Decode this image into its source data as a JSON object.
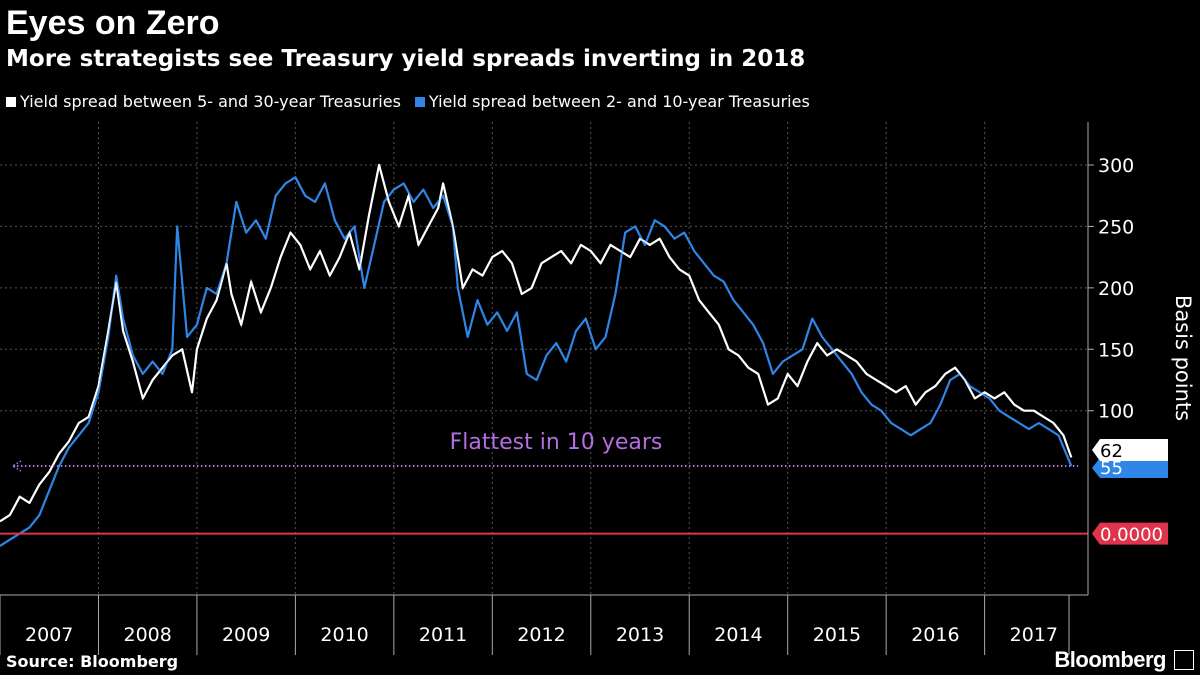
{
  "header": {
    "title": "Eyes on Zero",
    "subtitle": "More strategists see Treasury yield spreads inverting in 2018"
  },
  "footer": {
    "source": "Source: Bloomberg",
    "brand": "Bloomberg"
  },
  "colors": {
    "series_white": "#ffffff",
    "series_blue": "#2f86e6",
    "zero_line": "#e0334c",
    "annotation": "#b36ee0",
    "grid": "#555555"
  },
  "chart_data": {
    "type": "line",
    "ylabel": "Basis points",
    "ylim": [
      -50,
      335
    ],
    "yticks": [
      100,
      150,
      200,
      250,
      300
    ],
    "xlim": [
      2007.0,
      2018.05
    ],
    "xticks": [
      "2007",
      "2008",
      "2009",
      "2010",
      "2011",
      "2012",
      "2013",
      "2014",
      "2015",
      "2016",
      "2017"
    ],
    "grid": true,
    "legend": "top-left",
    "annotation": {
      "text": "Flattest in 10 years",
      "y": 55,
      "x_from": 2007.05,
      "x_to": 2017.95
    },
    "reference_line": {
      "y": 0,
      "label": "0.0000"
    },
    "end_labels": {
      "white": "62",
      "blue": "55"
    },
    "series": [
      {
        "name": "Yield spread between 5- and 30-year Treasuries",
        "color": "#ffffff",
        "points": [
          [
            2007.0,
            10
          ],
          [
            2007.1,
            15
          ],
          [
            2007.2,
            30
          ],
          [
            2007.3,
            25
          ],
          [
            2007.4,
            40
          ],
          [
            2007.5,
            50
          ],
          [
            2007.6,
            65
          ],
          [
            2007.7,
            75
          ],
          [
            2007.8,
            90
          ],
          [
            2007.9,
            95
          ],
          [
            2008.0,
            120
          ],
          [
            2008.1,
            165
          ],
          [
            2008.18,
            205
          ],
          [
            2008.25,
            165
          ],
          [
            2008.35,
            140
          ],
          [
            2008.45,
            110
          ],
          [
            2008.55,
            125
          ],
          [
            2008.65,
            135
          ],
          [
            2008.75,
            145
          ],
          [
            2008.85,
            150
          ],
          [
            2008.95,
            115
          ],
          [
            2009.0,
            150
          ],
          [
            2009.1,
            175
          ],
          [
            2009.2,
            190
          ],
          [
            2009.3,
            220
          ],
          [
            2009.35,
            195
          ],
          [
            2009.45,
            170
          ],
          [
            2009.55,
            205
          ],
          [
            2009.65,
            180
          ],
          [
            2009.75,
            200
          ],
          [
            2009.85,
            225
          ],
          [
            2009.95,
            245
          ],
          [
            2010.05,
            235
          ],
          [
            2010.15,
            215
          ],
          [
            2010.25,
            230
          ],
          [
            2010.35,
            210
          ],
          [
            2010.45,
            225
          ],
          [
            2010.55,
            245
          ],
          [
            2010.65,
            215
          ],
          [
            2010.75,
            260
          ],
          [
            2010.85,
            300
          ],
          [
            2010.95,
            270
          ],
          [
            2011.05,
            250
          ],
          [
            2011.15,
            275
          ],
          [
            2011.25,
            235
          ],
          [
            2011.35,
            250
          ],
          [
            2011.45,
            265
          ],
          [
            2011.5,
            285
          ],
          [
            2011.6,
            250
          ],
          [
            2011.7,
            200
          ],
          [
            2011.8,
            215
          ],
          [
            2011.9,
            210
          ],
          [
            2012.0,
            225
          ],
          [
            2012.1,
            230
          ],
          [
            2012.2,
            220
          ],
          [
            2012.3,
            195
          ],
          [
            2012.4,
            200
          ],
          [
            2012.5,
            220
          ],
          [
            2012.6,
            225
          ],
          [
            2012.7,
            230
          ],
          [
            2012.8,
            220
          ],
          [
            2012.9,
            235
          ],
          [
            2013.0,
            230
          ],
          [
            2013.1,
            220
          ],
          [
            2013.2,
            235
          ],
          [
            2013.3,
            230
          ],
          [
            2013.4,
            225
          ],
          [
            2013.5,
            240
          ],
          [
            2013.6,
            235
          ],
          [
            2013.7,
            240
          ],
          [
            2013.8,
            225
          ],
          [
            2013.9,
            215
          ],
          [
            2014.0,
            210
          ],
          [
            2014.1,
            190
          ],
          [
            2014.2,
            180
          ],
          [
            2014.3,
            170
          ],
          [
            2014.4,
            150
          ],
          [
            2014.5,
            145
          ],
          [
            2014.6,
            135
          ],
          [
            2014.7,
            130
          ],
          [
            2014.8,
            105
          ],
          [
            2014.9,
            110
          ],
          [
            2015.0,
            130
          ],
          [
            2015.1,
            120
          ],
          [
            2015.2,
            140
          ],
          [
            2015.3,
            155
          ],
          [
            2015.4,
            145
          ],
          [
            2015.5,
            150
          ],
          [
            2015.6,
            145
          ],
          [
            2015.7,
            140
          ],
          [
            2015.8,
            130
          ],
          [
            2015.9,
            125
          ],
          [
            2016.0,
            120
          ],
          [
            2016.1,
            115
          ],
          [
            2016.2,
            120
          ],
          [
            2016.3,
            105
          ],
          [
            2016.4,
            115
          ],
          [
            2016.5,
            120
          ],
          [
            2016.6,
            130
          ],
          [
            2016.7,
            135
          ],
          [
            2016.8,
            125
          ],
          [
            2016.9,
            110
          ],
          [
            2017.0,
            115
          ],
          [
            2017.1,
            110
          ],
          [
            2017.2,
            115
          ],
          [
            2017.3,
            105
          ],
          [
            2017.4,
            100
          ],
          [
            2017.5,
            100
          ],
          [
            2017.6,
            95
          ],
          [
            2017.7,
            90
          ],
          [
            2017.8,
            80
          ],
          [
            2017.88,
            62
          ]
        ]
      },
      {
        "name": "Yield spread between 2- and 10-year Treasuries",
        "color": "#2f86e6",
        "points": [
          [
            2007.0,
            -10
          ],
          [
            2007.1,
            -5
          ],
          [
            2007.2,
            0
          ],
          [
            2007.3,
            5
          ],
          [
            2007.4,
            15
          ],
          [
            2007.5,
            35
          ],
          [
            2007.6,
            55
          ],
          [
            2007.7,
            70
          ],
          [
            2007.8,
            80
          ],
          [
            2007.9,
            90
          ],
          [
            2008.0,
            115
          ],
          [
            2008.1,
            160
          ],
          [
            2008.18,
            210
          ],
          [
            2008.25,
            175
          ],
          [
            2008.35,
            145
          ],
          [
            2008.45,
            130
          ],
          [
            2008.55,
            140
          ],
          [
            2008.65,
            130
          ],
          [
            2008.75,
            150
          ],
          [
            2008.8,
            250
          ],
          [
            2008.9,
            160
          ],
          [
            2009.0,
            170
          ],
          [
            2009.1,
            200
          ],
          [
            2009.2,
            195
          ],
          [
            2009.3,
            220
          ],
          [
            2009.4,
            270
          ],
          [
            2009.5,
            245
          ],
          [
            2009.6,
            255
          ],
          [
            2009.7,
            240
          ],
          [
            2009.8,
            275
          ],
          [
            2009.9,
            285
          ],
          [
            2010.0,
            290
          ],
          [
            2010.1,
            275
          ],
          [
            2010.2,
            270
          ],
          [
            2010.3,
            285
          ],
          [
            2010.4,
            255
          ],
          [
            2010.5,
            240
          ],
          [
            2010.6,
            250
          ],
          [
            2010.7,
            200
          ],
          [
            2010.8,
            235
          ],
          [
            2010.9,
            270
          ],
          [
            2011.0,
            280
          ],
          [
            2011.1,
            285
          ],
          [
            2011.2,
            270
          ],
          [
            2011.3,
            280
          ],
          [
            2011.4,
            265
          ],
          [
            2011.5,
            275
          ],
          [
            2011.6,
            250
          ],
          [
            2011.65,
            200
          ],
          [
            2011.75,
            160
          ],
          [
            2011.85,
            190
          ],
          [
            2011.95,
            170
          ],
          [
            2012.05,
            180
          ],
          [
            2012.15,
            165
          ],
          [
            2012.25,
            180
          ],
          [
            2012.35,
            130
          ],
          [
            2012.45,
            125
          ],
          [
            2012.55,
            145
          ],
          [
            2012.65,
            155
          ],
          [
            2012.75,
            140
          ],
          [
            2012.85,
            165
          ],
          [
            2012.95,
            175
          ],
          [
            2013.05,
            150
          ],
          [
            2013.15,
            160
          ],
          [
            2013.25,
            195
          ],
          [
            2013.35,
            245
          ],
          [
            2013.45,
            250
          ],
          [
            2013.55,
            235
          ],
          [
            2013.65,
            255
          ],
          [
            2013.75,
            250
          ],
          [
            2013.85,
            240
          ],
          [
            2013.95,
            245
          ],
          [
            2014.05,
            230
          ],
          [
            2014.15,
            220
          ],
          [
            2014.25,
            210
          ],
          [
            2014.35,
            205
          ],
          [
            2014.45,
            190
          ],
          [
            2014.55,
            180
          ],
          [
            2014.65,
            170
          ],
          [
            2014.75,
            155
          ],
          [
            2014.85,
            130
          ],
          [
            2014.95,
            140
          ],
          [
            2015.05,
            145
          ],
          [
            2015.15,
            150
          ],
          [
            2015.25,
            175
          ],
          [
            2015.35,
            160
          ],
          [
            2015.45,
            150
          ],
          [
            2015.55,
            140
          ],
          [
            2015.65,
            130
          ],
          [
            2015.75,
            115
          ],
          [
            2015.85,
            105
          ],
          [
            2015.95,
            100
          ],
          [
            2016.05,
            90
          ],
          [
            2016.15,
            85
          ],
          [
            2016.25,
            80
          ],
          [
            2016.35,
            85
          ],
          [
            2016.45,
            90
          ],
          [
            2016.55,
            105
          ],
          [
            2016.65,
            125
          ],
          [
            2016.75,
            130
          ],
          [
            2016.85,
            120
          ],
          [
            2016.95,
            115
          ],
          [
            2017.05,
            110
          ],
          [
            2017.15,
            100
          ],
          [
            2017.25,
            95
          ],
          [
            2017.35,
            90
          ],
          [
            2017.45,
            85
          ],
          [
            2017.55,
            90
          ],
          [
            2017.65,
            85
          ],
          [
            2017.75,
            80
          ],
          [
            2017.88,
            55
          ]
        ]
      }
    ]
  }
}
